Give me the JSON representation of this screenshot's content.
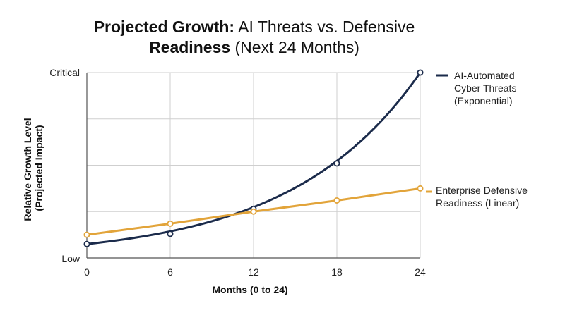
{
  "chart_data": {
    "type": "line",
    "title_bold_1": "Projected Growth:",
    "title_normal_1": "AI Threats vs. Defensive",
    "title_bold_2": "Readiness",
    "title_normal_2": "(Next 24 Months)",
    "xlabel": "Months (0 to 24)",
    "ylabel_line1": "Relative Growth Level",
    "ylabel_line2": "(Projected Impact)",
    "x": [
      0,
      6,
      12,
      18,
      24
    ],
    "x_tick_labels": [
      "0",
      "6",
      "12",
      "18",
      "24"
    ],
    "y_tick_labels": {
      "low": "Low",
      "high": "Critical"
    },
    "ylim": [
      0,
      100
    ],
    "grid": true,
    "series": [
      {
        "name_lines": [
          "AI-Automated",
          "Cyber Threats",
          "(Exponential)"
        ],
        "color": "#1b2b4b",
        "curve": "exponential",
        "values": [
          7.5,
          13,
          26.5,
          51,
          100
        ]
      },
      {
        "name_lines": [
          "Enterprise Defensive",
          "Readiness (Linear)"
        ],
        "color": "#e2a43a",
        "curve": "linear",
        "values": [
          12.5,
          18.5,
          25,
          31,
          37.5
        ]
      }
    ]
  }
}
